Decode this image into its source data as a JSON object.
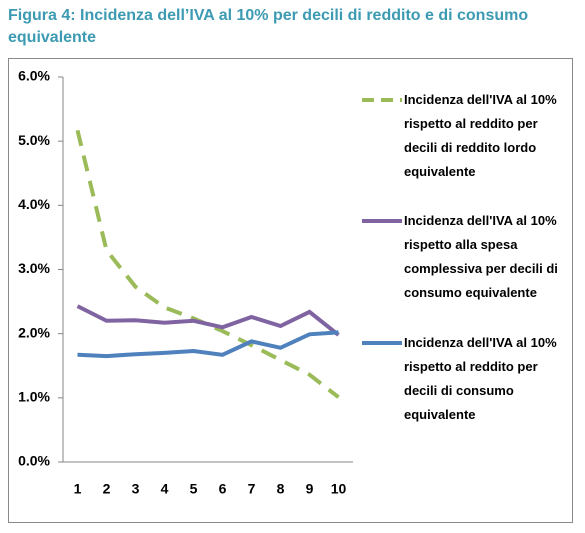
{
  "chart_data": {
    "type": "line",
    "title": "Figura 4: Incidenza dell’IVA al 10% per decili di reddito e di consumo equivalente",
    "categories": [
      "1",
      "2",
      "3",
      "4",
      "5",
      "6",
      "7",
      "8",
      "9",
      "10"
    ],
    "ylim": [
      0,
      6
    ],
    "yticks": [
      {
        "value": 0,
        "label": "0.0%"
      },
      {
        "value": 1,
        "label": "1.0%"
      },
      {
        "value": 2,
        "label": "2.0%"
      },
      {
        "value": 3,
        "label": "3.0%"
      },
      {
        "value": 4,
        "label": "4.0%"
      },
      {
        "value": 5,
        "label": "5.0%"
      },
      {
        "value": 6,
        "label": "6.0%"
      }
    ],
    "legend": "right",
    "series": [
      {
        "name": "Incidenza dell'IVA al 10% rispetto al reddito per decili di reddito lordo equivalente",
        "color": "#9bbb59",
        "dashed": true,
        "values": [
          5.17,
          3.3,
          2.73,
          2.41,
          2.24,
          2.04,
          1.82,
          1.59,
          1.36,
          1.01
        ]
      },
      {
        "name": "Incidenza dell'IVA al 10% rispetto alla spesa complessiva per decili di consumo equivalente",
        "color": "#8064a2",
        "dashed": false,
        "values": [
          2.43,
          2.2,
          2.21,
          2.17,
          2.2,
          2.1,
          2.26,
          2.12,
          2.34,
          1.98
        ]
      },
      {
        "name": "Incidenza dell'IVA al 10% rispetto al reddito per decili di consumo equivalente",
        "color": "#4f81bd",
        "dashed": false,
        "values": [
          1.67,
          1.65,
          1.68,
          1.7,
          1.73,
          1.67,
          1.88,
          1.78,
          1.99,
          2.02
        ]
      }
    ]
  }
}
